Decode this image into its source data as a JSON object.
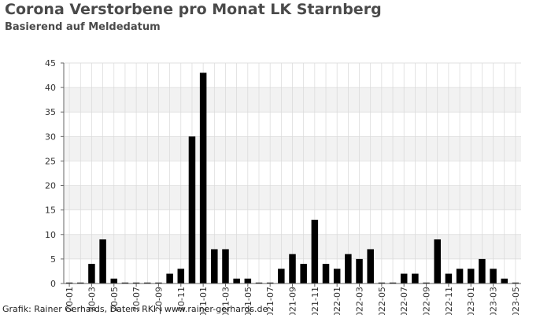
{
  "title": "Corona Verstorbene pro Monat LK Starnberg",
  "subtitle": "Basierend auf Meldedatum",
  "footer": "Grafik: Rainer Gerhards, Daten: RKI | www.rainer-gerhards.de",
  "colors": {
    "bar": "#000000",
    "band": "#f2f2f2",
    "grid": "#d9d9d9",
    "axis": "#666666",
    "text": "#333333"
  },
  "chart_data": {
    "type": "bar",
    "title": "Corona Verstorbene pro Monat LK Starnberg",
    "subtitle": "Basierend auf Meldedatum",
    "xlabel": "",
    "ylabel": "",
    "ylim": [
      0,
      45
    ],
    "yticks": [
      0,
      5,
      10,
      15,
      20,
      25,
      30,
      35,
      40,
      45
    ],
    "grid": true,
    "categories": [
      "2020-01",
      "2020-02",
      "2020-03",
      "2020-04",
      "2020-05",
      "2020-06",
      "2020-07",
      "2020-08",
      "2020-09",
      "2020-10",
      "2020-11",
      "2020-12",
      "2021-01",
      "2021-02",
      "2021-03",
      "2021-04",
      "2021-05",
      "2021-06",
      "2021-07",
      "2021-08",
      "2021-09",
      "2021-10",
      "2021-11",
      "2021-12",
      "2022-01",
      "2022-02",
      "2022-03",
      "2022-04",
      "2022-05",
      "2022-06",
      "2022-07",
      "2022-08",
      "2022-09",
      "2022-10",
      "2022-11",
      "2022-12",
      "2023-01",
      "2023-02",
      "2023-03",
      "2023-04",
      "2023-05"
    ],
    "visible_tick_labels": [
      "20-01",
      "20-03",
      "20-05",
      "20-07",
      "20-09",
      "20-11",
      "2021-01",
      "2021-03",
      "2021-05",
      "2021-07",
      "2021-09",
      "2021-11",
      "2022-01",
      "2022-03",
      "2022-05",
      "2022-07",
      "2022-09",
      "2022-11",
      "2023-01",
      "2023-03",
      "2023-05"
    ],
    "values": [
      0,
      0,
      4,
      9,
      1,
      0,
      0,
      0,
      0,
      2,
      3,
      30,
      43,
      7,
      7,
      1,
      1,
      0,
      0,
      3,
      6,
      4,
      13,
      4,
      3,
      6,
      5,
      7,
      0,
      0,
      2,
      2,
      0,
      9,
      2,
      3,
      3,
      5,
      3,
      1,
      0
    ]
  }
}
